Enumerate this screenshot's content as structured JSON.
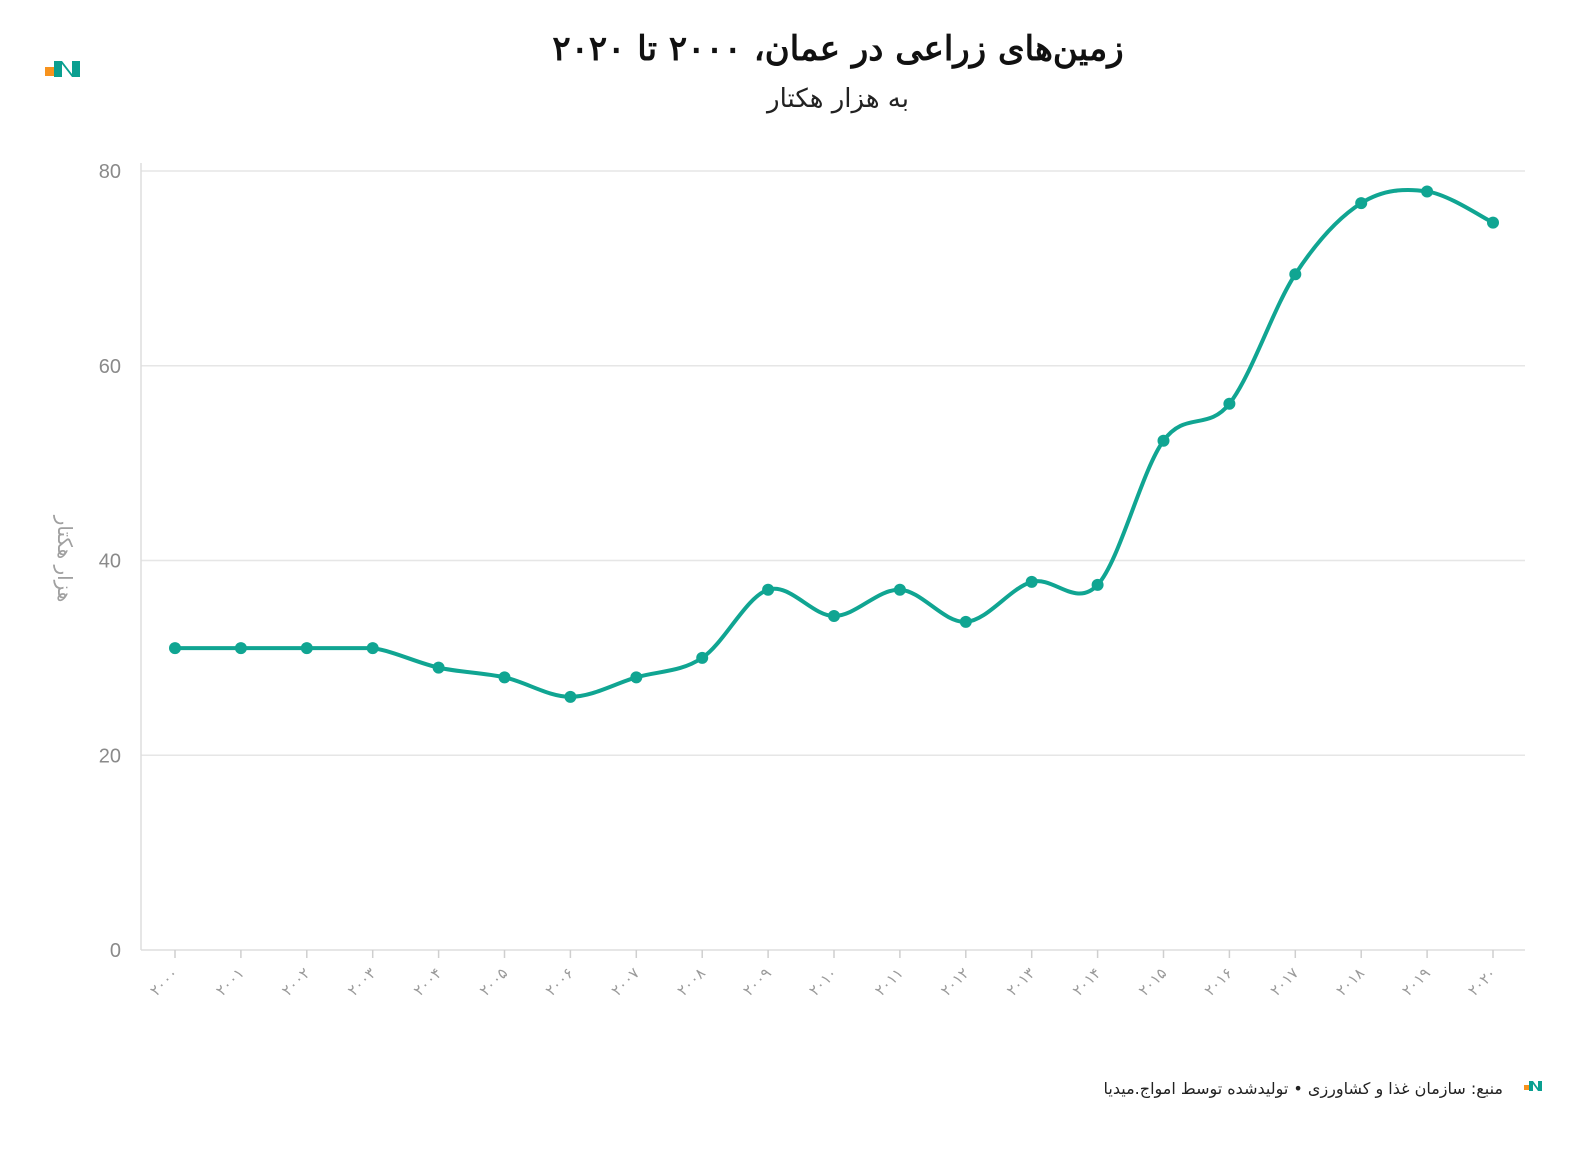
{
  "brand": {
    "logo_orange": "#f7931e",
    "logo_teal": "#0a9f90"
  },
  "chart_data": {
    "type": "line",
    "title": "زمین‌های زراعی در عمان، ۲۰۰۰ تا ۲۰۲۰",
    "subtitle": "به هزار هکتار",
    "ylabel": "هزار هکتار",
    "xlabel": "",
    "ylim": [
      0,
      80
    ],
    "yticks": [
      0,
      20,
      40,
      60,
      80
    ],
    "grid": true,
    "categories": [
      "۲۰۰۰",
      "۲۰۰۱",
      "۲۰۰۲",
      "۲۰۰۳",
      "۲۰۰۴",
      "۲۰۰۵",
      "۲۰۰۶",
      "۲۰۰۷",
      "۲۰۰۸",
      "۲۰۰۹",
      "۲۰۱۰",
      "۲۰۱۱",
      "۲۰۱۲",
      "۲۰۱۳",
      "۲۰۱۴",
      "۲۰۱۵",
      "۲۰۱۶",
      "۲۰۱۷",
      "۲۰۱۸",
      "۲۰۱۹",
      "۲۰۲۰"
    ],
    "series": [
      {
        "color": "#10a592",
        "values": [
          31,
          31,
          31,
          31,
          29,
          28,
          26,
          28,
          30,
          37,
          34.3,
          37,
          33.7,
          37.8,
          37.5,
          52.3,
          56.1,
          69.4,
          76.7,
          77.9,
          74.7
        ]
      }
    ]
  },
  "footer": {
    "source": "منبع: سازمان غذا و کشاورزی • تولیدشده توسط امواج.میدیا"
  }
}
